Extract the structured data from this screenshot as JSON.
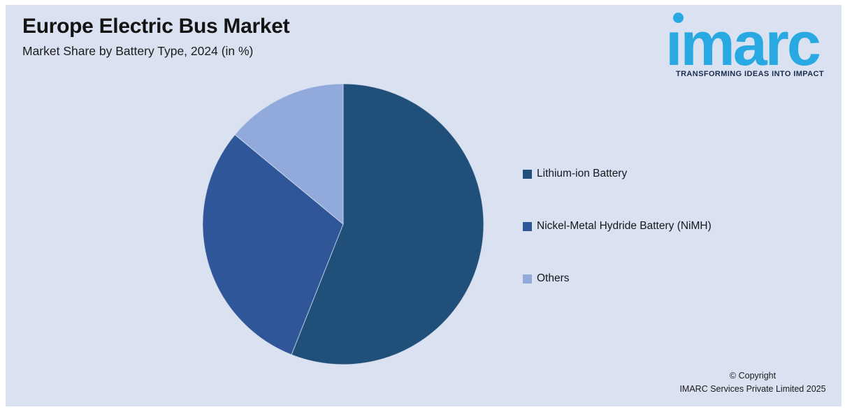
{
  "header": {
    "title": "Europe Electric Bus Market",
    "subtitle": "Market Share by Battery Type, 2024 (in %)"
  },
  "logo": {
    "wordmark": "imarc",
    "wordmark_display": "ımarc",
    "tagline": "TRANSFORMING IDEAS INTO IMPACT",
    "brand_color": "#29A9E1",
    "tagline_color": "#1B2D4F"
  },
  "chart_data": {
    "type": "pie",
    "title": "Europe Electric Bus Market",
    "subtitle": "Market Share by Battery Type, 2024 (in %)",
    "categories": [
      "Lithium-ion Battery",
      "Nickel-Metal Hydride Battery (NiMH)",
      "Others"
    ],
    "values": [
      56,
      30,
      14
    ],
    "unit": "%",
    "colors": [
      "#205079",
      "#2F5698",
      "#92AADB"
    ],
    "start_angle_deg": 0,
    "direction": "clockwise",
    "data_labels": false,
    "legend_position": "right"
  },
  "legend": {
    "items": [
      {
        "label": "Lithium-ion Battery",
        "color": "#205079"
      },
      {
        "label": "Nickel-Metal Hydride Battery (NiMH)",
        "color": "#2F5698"
      },
      {
        "label": "Others",
        "color": "#92AADB"
      }
    ]
  },
  "footer": {
    "copyright_line1": "© Copyright",
    "copyright_line2": "IMARC Services Private Limited 2025"
  },
  "canvas": {
    "background": "#DAE1F0",
    "border": "#FFFFFF"
  }
}
